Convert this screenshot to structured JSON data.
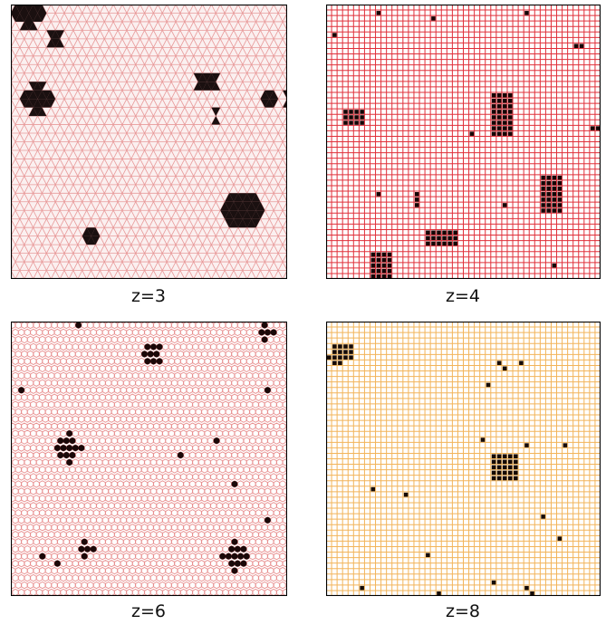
{
  "panels": [
    {
      "id": "z3",
      "caption": "z=3",
      "lattice": "triangular",
      "line_color": "#e89a9a",
      "fill_color": "#fbf0f0",
      "occupied_color": "#1a1010",
      "grid_size": [
        62,
        32
      ],
      "clusters": [
        {
          "shape": "cluster",
          "center": [
            2,
            1
          ],
          "radius": 1.6
        },
        {
          "shape": "cluster",
          "center": [
            5,
            4
          ],
          "radius": 0.9
        },
        {
          "shape": "cluster",
          "center": [
            3,
            11
          ],
          "radius": 1.6
        },
        {
          "shape": "cluster",
          "center": [
            22,
            9
          ],
          "radius": 1.2
        },
        {
          "shape": "cluster",
          "center": [
            29,
            11
          ],
          "radius": 0.8
        },
        {
          "shape": "cluster",
          "center": [
            37,
            12
          ],
          "radius": 1.2
        },
        {
          "shape": "cluster",
          "center": [
            45,
            15
          ],
          "radius": 2.0
        },
        {
          "shape": "cluster",
          "center": [
            48,
            3
          ],
          "radius": 2.4
        },
        {
          "shape": "cluster",
          "center": [
            55,
            4
          ],
          "radius": 1.8
        },
        {
          "shape": "cluster",
          "center": [
            26,
            24
          ],
          "radius": 2.2
        },
        {
          "shape": "cluster",
          "center": [
            44,
            30
          ],
          "radius": 2.0
        },
        {
          "shape": "cluster",
          "center": [
            58,
            23
          ],
          "radius": 1.2
        },
        {
          "shape": "cluster",
          "center": [
            9,
            27
          ],
          "radius": 0.8
        },
        {
          "shape": "cluster",
          "center": [
            42,
            7
          ],
          "radius": 0.8
        },
        {
          "shape": "cluster",
          "center": [
            53,
            7
          ],
          "radius": 0.7
        },
        {
          "shape": "cluster",
          "center": [
            47,
            17
          ],
          "radius": 0.7
        },
        {
          "shape": "cluster",
          "center": [
            23,
            13
          ],
          "radius": 0.6
        },
        {
          "shape": "cluster",
          "center": [
            31,
            11
          ],
          "radius": 0.6
        },
        {
          "shape": "cluster",
          "center": [
            47,
            22
          ],
          "radius": 0.6
        }
      ]
    },
    {
      "id": "z4",
      "caption": "z=4",
      "lattice": "square",
      "line_color": "#e0303a",
      "fill_color": "#ffffff",
      "occupied_color": "#150505",
      "grid_size": [
        50,
        50
      ],
      "clusters": [
        {
          "cells": [
            [
              9,
              1
            ],
            [
              19,
              2
            ],
            [
              36,
              1
            ],
            [
              1,
              5
            ],
            [
              45,
              7
            ],
            [
              46,
              7
            ],
            [
              48,
              22
            ],
            [
              49,
              22
            ],
            [
              26,
              23
            ],
            [
              9,
              34
            ],
            [
              16,
              34
            ],
            [
              16,
              35
            ],
            [
              16,
              36
            ],
            [
              32,
              36
            ],
            [
              41,
              47
            ]
          ]
        },
        {
          "block": [
            3,
            19,
            6,
            21
          ]
        },
        {
          "block": [
            30,
            16,
            33,
            23
          ]
        },
        {
          "block": [
            18,
            41,
            23,
            43
          ]
        },
        {
          "block": [
            39,
            31,
            42,
            37
          ]
        },
        {
          "block": [
            8,
            45,
            11,
            49
          ]
        }
      ]
    },
    {
      "id": "z6",
      "caption": "z=6",
      "lattice": "honeycomb",
      "line_color": "#e89090",
      "fill_color": "#ffffff",
      "occupied_color": "#1a0808",
      "grid_size": [
        46,
        38
      ],
      "clusters": [
        {
          "shape": "blob",
          "center": [
            23,
            4
          ],
          "radius": 1.8
        },
        {
          "shape": "blob",
          "center": [
            42,
            1
          ],
          "radius": 1.0
        },
        {
          "shape": "blob",
          "center": [
            9,
            17
          ],
          "radius": 2.2
        },
        {
          "shape": "blob",
          "center": [
            12,
            31
          ],
          "radius": 1.2
        },
        {
          "shape": "blob",
          "center": [
            37,
            32
          ],
          "radius": 2.0
        },
        {
          "cells": [
            [
              1,
              9
            ],
            [
              42,
              9
            ],
            [
              34,
              16
            ],
            [
              46,
              14
            ],
            [
              28,
              18
            ],
            [
              37,
              22
            ],
            [
              42,
              27
            ],
            [
              5,
              32
            ],
            [
              7,
              33
            ],
            [
              11,
              0
            ]
          ]
        }
      ]
    },
    {
      "id": "z8",
      "caption": "z=8",
      "lattice": "square",
      "line_color": "#f2b45a",
      "fill_color": "#ffffff",
      "occupied_color": "#150a05",
      "grid_size": [
        50,
        50
      ],
      "clusters": [
        {
          "block": [
            1,
            4,
            4,
            6
          ]
        },
        {
          "block": [
            30,
            24,
            34,
            28
          ]
        },
        {
          "cells": [
            [
              0,
              6
            ],
            [
              1,
              7
            ],
            [
              2,
              7
            ],
            [
              31,
              7
            ],
            [
              32,
              8
            ],
            [
              35,
              7
            ],
            [
              29,
              11
            ],
            [
              28,
              21
            ],
            [
              36,
              22
            ],
            [
              43,
              22
            ],
            [
              8,
              30
            ],
            [
              14,
              31
            ],
            [
              39,
              35
            ],
            [
              42,
              39
            ],
            [
              18,
              42
            ],
            [
              30,
              47
            ],
            [
              6,
              48
            ],
            [
              20,
              49
            ],
            [
              36,
              48
            ],
            [
              37,
              49
            ]
          ]
        }
      ]
    }
  ]
}
